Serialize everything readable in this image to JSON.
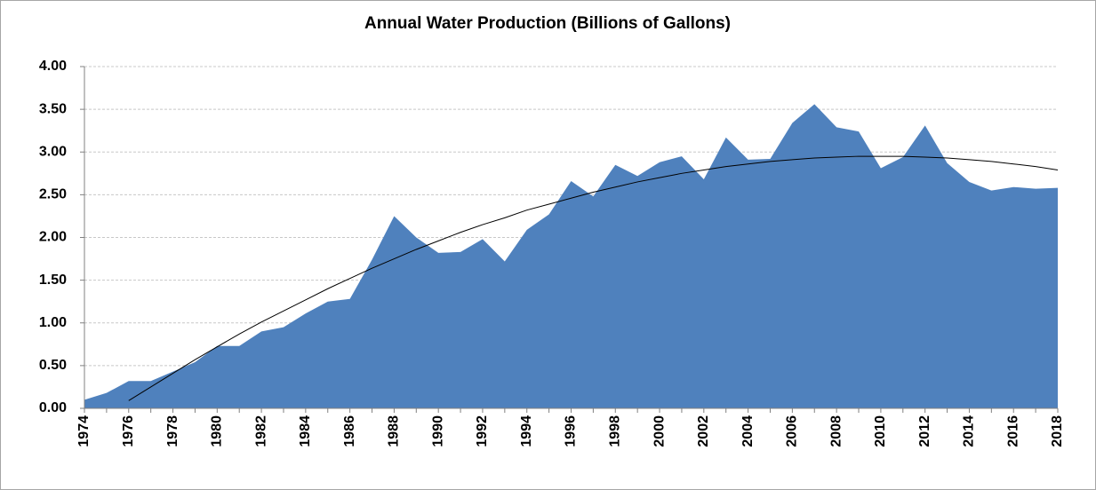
{
  "chart_data": {
    "type": "area",
    "title": "Annual Water Production (Billions of Gallons)",
    "categories": [
      "1974",
      null,
      "1976",
      null,
      "1978",
      null,
      "1980",
      null,
      "1982",
      null,
      "1984",
      null,
      "1986",
      null,
      "1988",
      null,
      "1990",
      null,
      "1992",
      null,
      "1994",
      null,
      "1996",
      null,
      "1998",
      null,
      "2000",
      null,
      "2002",
      null,
      "2004",
      null,
      "2006",
      null,
      "2008",
      null,
      "2010",
      null,
      "2012",
      null,
      "2014",
      null,
      "2016",
      null,
      "2018"
    ],
    "values": [
      0.1,
      0.18,
      0.32,
      0.32,
      0.43,
      0.54,
      0.73,
      0.73,
      0.9,
      0.95,
      1.11,
      1.25,
      1.28,
      1.74,
      2.25,
      2.0,
      1.82,
      1.83,
      1.98,
      1.72,
      2.09,
      2.27,
      2.66,
      2.48,
      2.85,
      2.72,
      2.88,
      2.95,
      2.68,
      3.17,
      2.91,
      2.92,
      3.34,
      3.56,
      3.29,
      3.24,
      2.81,
      2.94,
      3.31,
      2.87,
      2.65,
      2.55,
      2.59,
      2.57,
      2.58
    ],
    "color": "#4f81bd",
    "trendline": {
      "color": "#000000",
      "values": [
        null,
        null,
        0.09,
        0.25,
        0.41,
        0.57,
        0.72,
        0.87,
        1.01,
        1.14,
        1.27,
        1.4,
        1.52,
        1.64,
        1.75,
        1.86,
        1.96,
        2.06,
        2.15,
        2.23,
        2.32,
        2.39,
        2.46,
        2.53,
        2.59,
        2.65,
        2.7,
        2.75,
        2.79,
        2.83,
        2.86,
        2.89,
        2.91,
        2.93,
        2.94,
        2.95,
        2.95,
        2.95,
        2.94,
        2.93,
        2.91,
        2.89,
        2.86,
        2.83,
        2.79
      ]
    },
    "ylim": [
      0,
      4
    ],
    "yticks": [
      {
        "value": 0,
        "label": "0.00"
      },
      {
        "value": 0.5,
        "label": "0.50"
      },
      {
        "value": 1,
        "label": "1.00"
      },
      {
        "value": 1.5,
        "label": "1.50"
      },
      {
        "value": 2,
        "label": "2.00"
      },
      {
        "value": 2.5,
        "label": "2.50"
      },
      {
        "value": 3,
        "label": "3.00"
      },
      {
        "value": 3.5,
        "label": "3.50"
      },
      {
        "value": 4,
        "label": "4.00"
      }
    ],
    "grid": true
  }
}
